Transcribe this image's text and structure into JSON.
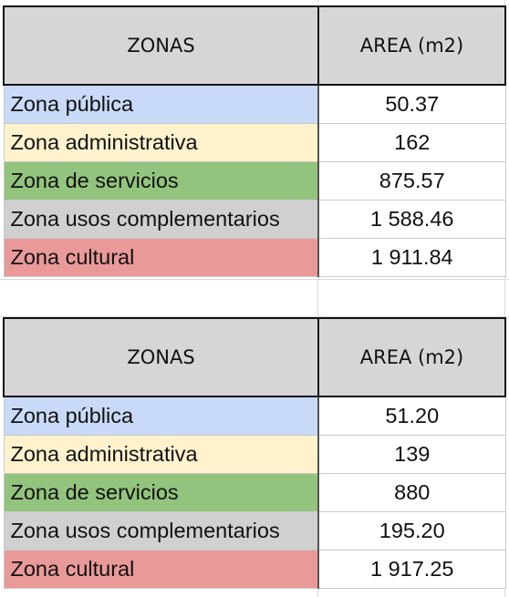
{
  "colors": {
    "header_bg": "#d6d6d6",
    "zona_publica": "#c9daf8",
    "zona_administrativa": "#fff2cc",
    "zona_servicios": "#93c47d",
    "zona_usos_complementarios": "#d0d0d0",
    "zona_cultural": "#ea9999"
  },
  "tables": [
    {
      "headers": [
        "ZONAS",
        "AREA (m2)"
      ],
      "rows": [
        {
          "zona": "Zona pública",
          "area": "50.37"
        },
        {
          "zona": "Zona administrativa",
          "area": "162"
        },
        {
          "zona": "Zona de servicios",
          "area": "875.57"
        },
        {
          "zona": "Zona usos complementarios",
          "area": "1 588.46"
        },
        {
          "zona": "Zona cultural",
          "area": "1 911.84"
        }
      ]
    },
    {
      "headers": [
        "ZONAS",
        "AREA (m2)"
      ],
      "rows": [
        {
          "zona": "Zona pública",
          "area": "51.20"
        },
        {
          "zona": "Zona administrativa",
          "area": "139"
        },
        {
          "zona": "Zona de servicios",
          "area": "880"
        },
        {
          "zona": "Zona usos complementarios",
          "area": "195.20"
        },
        {
          "zona": "Zona cultural",
          "area": "1 917.25"
        }
      ]
    }
  ]
}
